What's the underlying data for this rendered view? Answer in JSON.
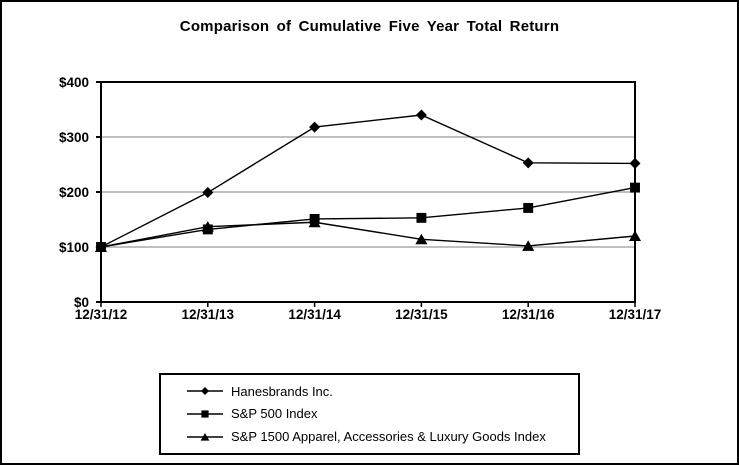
{
  "title": "Comparison of Cumulative Five Year Total Return",
  "colors": {
    "series_line": "#000000",
    "gridline": "#999999",
    "plot_border": "#000000",
    "background": "#ffffff",
    "text": "#000000"
  },
  "chart_data": {
    "type": "line",
    "title": "Comparison of Cumulative Five Year Total Return",
    "categories": [
      "12/31/12",
      "12/31/13",
      "12/31/14",
      "12/31/15",
      "12/31/16",
      "12/31/17"
    ],
    "xlabel": "",
    "ylabel": "",
    "ylim": [
      0,
      400
    ],
    "y_ticks": [
      {
        "label": "$0",
        "value": 0
      },
      {
        "label": "$100",
        "value": 100
      },
      {
        "label": "$200",
        "value": 200
      },
      {
        "label": "$300",
        "value": 300
      },
      {
        "label": "$400",
        "value": 400
      }
    ],
    "grid": "horizontal-on",
    "legend_position": "bottom-boxed",
    "series": [
      {
        "name": "Hanesbrands Inc.",
        "marker": "diamond",
        "values": [
          100,
          199,
          318,
          340,
          253,
          252
        ]
      },
      {
        "name": "S&P 500 Index",
        "marker": "square",
        "values": [
          100,
          132,
          151,
          153,
          171,
          208
        ]
      },
      {
        "name": "S&P 1500 Apparel, Accessories & Luxury Goods Index",
        "marker": "triangle",
        "values": [
          100,
          137,
          145,
          114,
          102,
          120
        ]
      }
    ]
  }
}
